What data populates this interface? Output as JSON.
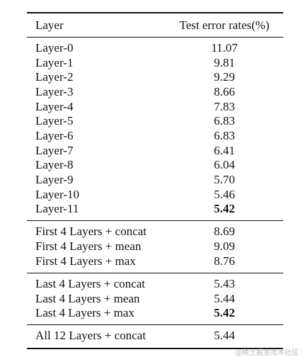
{
  "table": {
    "header": [
      "Layer",
      "Test error rates(%)"
    ],
    "groups": [
      {
        "rows": [
          [
            "Layer-0",
            "11.07"
          ],
          [
            "Layer-1",
            "9.81"
          ],
          [
            "Layer-2",
            "9.29"
          ],
          [
            "Layer-3",
            "8.66"
          ],
          [
            "Layer-4",
            "7.83"
          ],
          [
            "Layer-5",
            "6.83"
          ],
          [
            "Layer-6",
            "6.83"
          ],
          [
            "Layer-7",
            "6.41"
          ],
          [
            "Layer-8",
            "6.04"
          ],
          [
            "Layer-9",
            "5.70"
          ],
          [
            "Layer-10",
            "5.46"
          ],
          [
            "Layer-11",
            "5.42"
          ]
        ]
      },
      {
        "rows": [
          [
            "First 4 Layers + concat",
            "8.69"
          ],
          [
            "First 4 Layers + mean",
            "9.09"
          ],
          [
            "First 4 Layers + max",
            "8.76"
          ]
        ]
      },
      {
        "rows": [
          [
            "Last 4 Layers + concat",
            "5.43"
          ],
          [
            "Last 4 Layers + mean",
            "5.44"
          ],
          [
            "Last 4 Layers + max",
            "5.42"
          ]
        ]
      },
      {
        "rows": [
          [
            "All 12 Layers + concat",
            "5.44"
          ]
        ]
      }
    ]
  },
  "watermark": "@稀土掘金技术社区"
}
